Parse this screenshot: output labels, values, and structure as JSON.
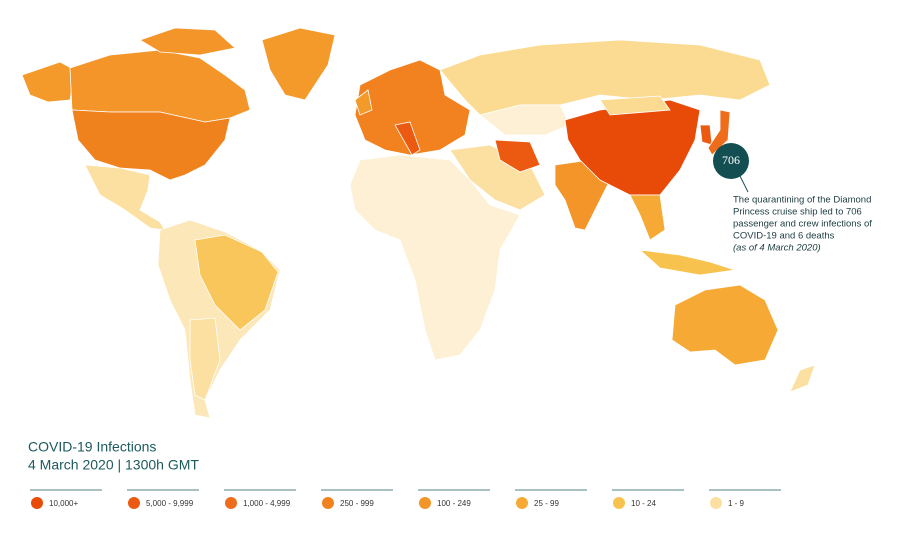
{
  "title": "COVID-19 Infections",
  "subtitle": "4 March 2020  |  1300h GMT",
  "annotation": {
    "bubble": "706",
    "lines": [
      "The quarantining of the Diamond",
      "Princess cruise ship led to 706",
      "passenger and crew infections of",
      "COVID-19 and 6 deaths"
    ],
    "note": "(as of 4 March 2020)"
  },
  "legend": [
    {
      "label": "10,000+",
      "color": "#e84a08"
    },
    {
      "label": "5,000 - 9,999",
      "color": "#ec5a12"
    },
    {
      "label": "1,000 - 4,999",
      "color": "#ef6c1a"
    },
    {
      "label": "250 - 999",
      "color": "#f2821f"
    },
    {
      "label": "100 - 249",
      "color": "#f4952a"
    },
    {
      "label": "25 - 99",
      "color": "#f6aa35"
    },
    {
      "label": "10 - 24",
      "color": "#f8c24f"
    },
    {
      "label": "1 - 9",
      "color": "#fbe0a2"
    }
  ]
}
